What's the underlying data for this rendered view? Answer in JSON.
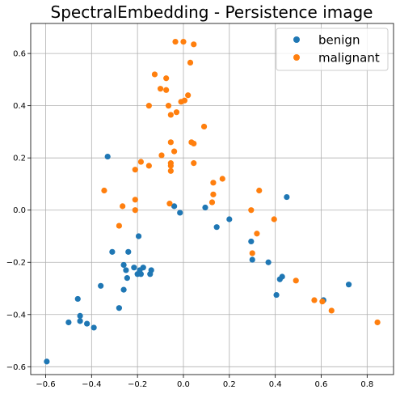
{
  "chart_data": {
    "type": "scatter",
    "title": "SpectralEmbedding - Persistence image",
    "xlabel": "",
    "ylabel": "",
    "xlim": [
      -0.665,
      0.915
    ],
    "ylim": [
      -0.63,
      0.715
    ],
    "xticks": [
      -0.6,
      -0.4,
      -0.2,
      0.0,
      0.2,
      0.4,
      0.6,
      0.8
    ],
    "yticks": [
      -0.6,
      -0.4,
      -0.2,
      0.0,
      0.2,
      0.4,
      0.6
    ],
    "xtick_labels": [
      "−0.6",
      "−0.4",
      "−0.2",
      "0.0",
      "0.2",
      "0.4",
      "0.6",
      "0.8"
    ],
    "ytick_labels": [
      "−0.6",
      "−0.4",
      "−0.2",
      "0.0",
      "0.2",
      "0.4",
      "0.6"
    ],
    "grid": true,
    "legend": "top-right",
    "series": [
      {
        "name": "benign",
        "color": "#1f77b4",
        "points": [
          [
            -0.595,
            -0.58
          ],
          [
            -0.5,
            -0.43
          ],
          [
            -0.46,
            -0.34
          ],
          [
            -0.45,
            -0.405
          ],
          [
            -0.45,
            -0.425
          ],
          [
            -0.42,
            -0.435
          ],
          [
            -0.39,
            -0.45
          ],
          [
            -0.36,
            -0.29
          ],
          [
            -0.33,
            0.205
          ],
          [
            -0.31,
            -0.16
          ],
          [
            -0.28,
            -0.375
          ],
          [
            -0.26,
            -0.21
          ],
          [
            -0.26,
            -0.305
          ],
          [
            -0.25,
            -0.23
          ],
          [
            -0.245,
            -0.26
          ],
          [
            -0.24,
            -0.16
          ],
          [
            -0.215,
            -0.22
          ],
          [
            -0.2,
            -0.245
          ],
          [
            -0.195,
            -0.1
          ],
          [
            -0.19,
            -0.23
          ],
          [
            -0.185,
            -0.245
          ],
          [
            -0.175,
            -0.22
          ],
          [
            -0.145,
            -0.245
          ],
          [
            -0.14,
            -0.23
          ],
          [
            -0.04,
            0.015
          ],
          [
            -0.015,
            -0.01
          ],
          [
            0.095,
            0.01
          ],
          [
            0.145,
            -0.065
          ],
          [
            0.2,
            -0.035
          ],
          [
            0.295,
            -0.12
          ],
          [
            0.3,
            -0.19
          ],
          [
            0.37,
            -0.2
          ],
          [
            0.405,
            -0.325
          ],
          [
            0.42,
            -0.265
          ],
          [
            0.43,
            -0.255
          ],
          [
            0.45,
            0.05
          ],
          [
            0.61,
            -0.345
          ],
          [
            0.72,
            -0.285
          ]
        ]
      },
      {
        "name": "malignant",
        "color": "#ff7f0e",
        "points": [
          [
            -0.035,
            0.645
          ],
          [
            0.0,
            0.645
          ],
          [
            0.045,
            0.635
          ],
          [
            -0.125,
            0.52
          ],
          [
            -0.075,
            0.505
          ],
          [
            0.03,
            0.565
          ],
          [
            -0.1,
            0.465
          ],
          [
            -0.075,
            0.46
          ],
          [
            -0.01,
            0.415
          ],
          [
            0.005,
            0.42
          ],
          [
            0.02,
            0.44
          ],
          [
            -0.15,
            0.4
          ],
          [
            -0.065,
            0.4
          ],
          [
            -0.055,
            0.365
          ],
          [
            -0.03,
            0.375
          ],
          [
            0.09,
            0.32
          ],
          [
            -0.055,
            0.26
          ],
          [
            0.035,
            0.26
          ],
          [
            0.045,
            0.255
          ],
          [
            -0.04,
            0.225
          ],
          [
            -0.095,
            0.21
          ],
          [
            -0.21,
            0.155
          ],
          [
            -0.185,
            0.185
          ],
          [
            -0.15,
            0.17
          ],
          [
            -0.055,
            0.17
          ],
          [
            -0.055,
            0.18
          ],
          [
            -0.055,
            0.15
          ],
          [
            0.045,
            0.18
          ],
          [
            0.17,
            0.12
          ],
          [
            0.13,
            0.105
          ],
          [
            -0.345,
            0.075
          ],
          [
            -0.265,
            0.015
          ],
          [
            -0.21,
            0.04
          ],
          [
            -0.21,
            0.0
          ],
          [
            -0.06,
            0.025
          ],
          [
            0.125,
            0.03
          ],
          [
            0.13,
            0.06
          ],
          [
            0.33,
            0.075
          ],
          [
            0.295,
            0.0
          ],
          [
            0.395,
            -0.035
          ],
          [
            -0.28,
            -0.06
          ],
          [
            0.32,
            -0.09
          ],
          [
            0.3,
            -0.165
          ],
          [
            0.49,
            -0.27
          ],
          [
            0.57,
            -0.345
          ],
          [
            0.605,
            -0.35
          ],
          [
            0.645,
            -0.385
          ],
          [
            0.845,
            -0.43
          ]
        ]
      }
    ]
  }
}
